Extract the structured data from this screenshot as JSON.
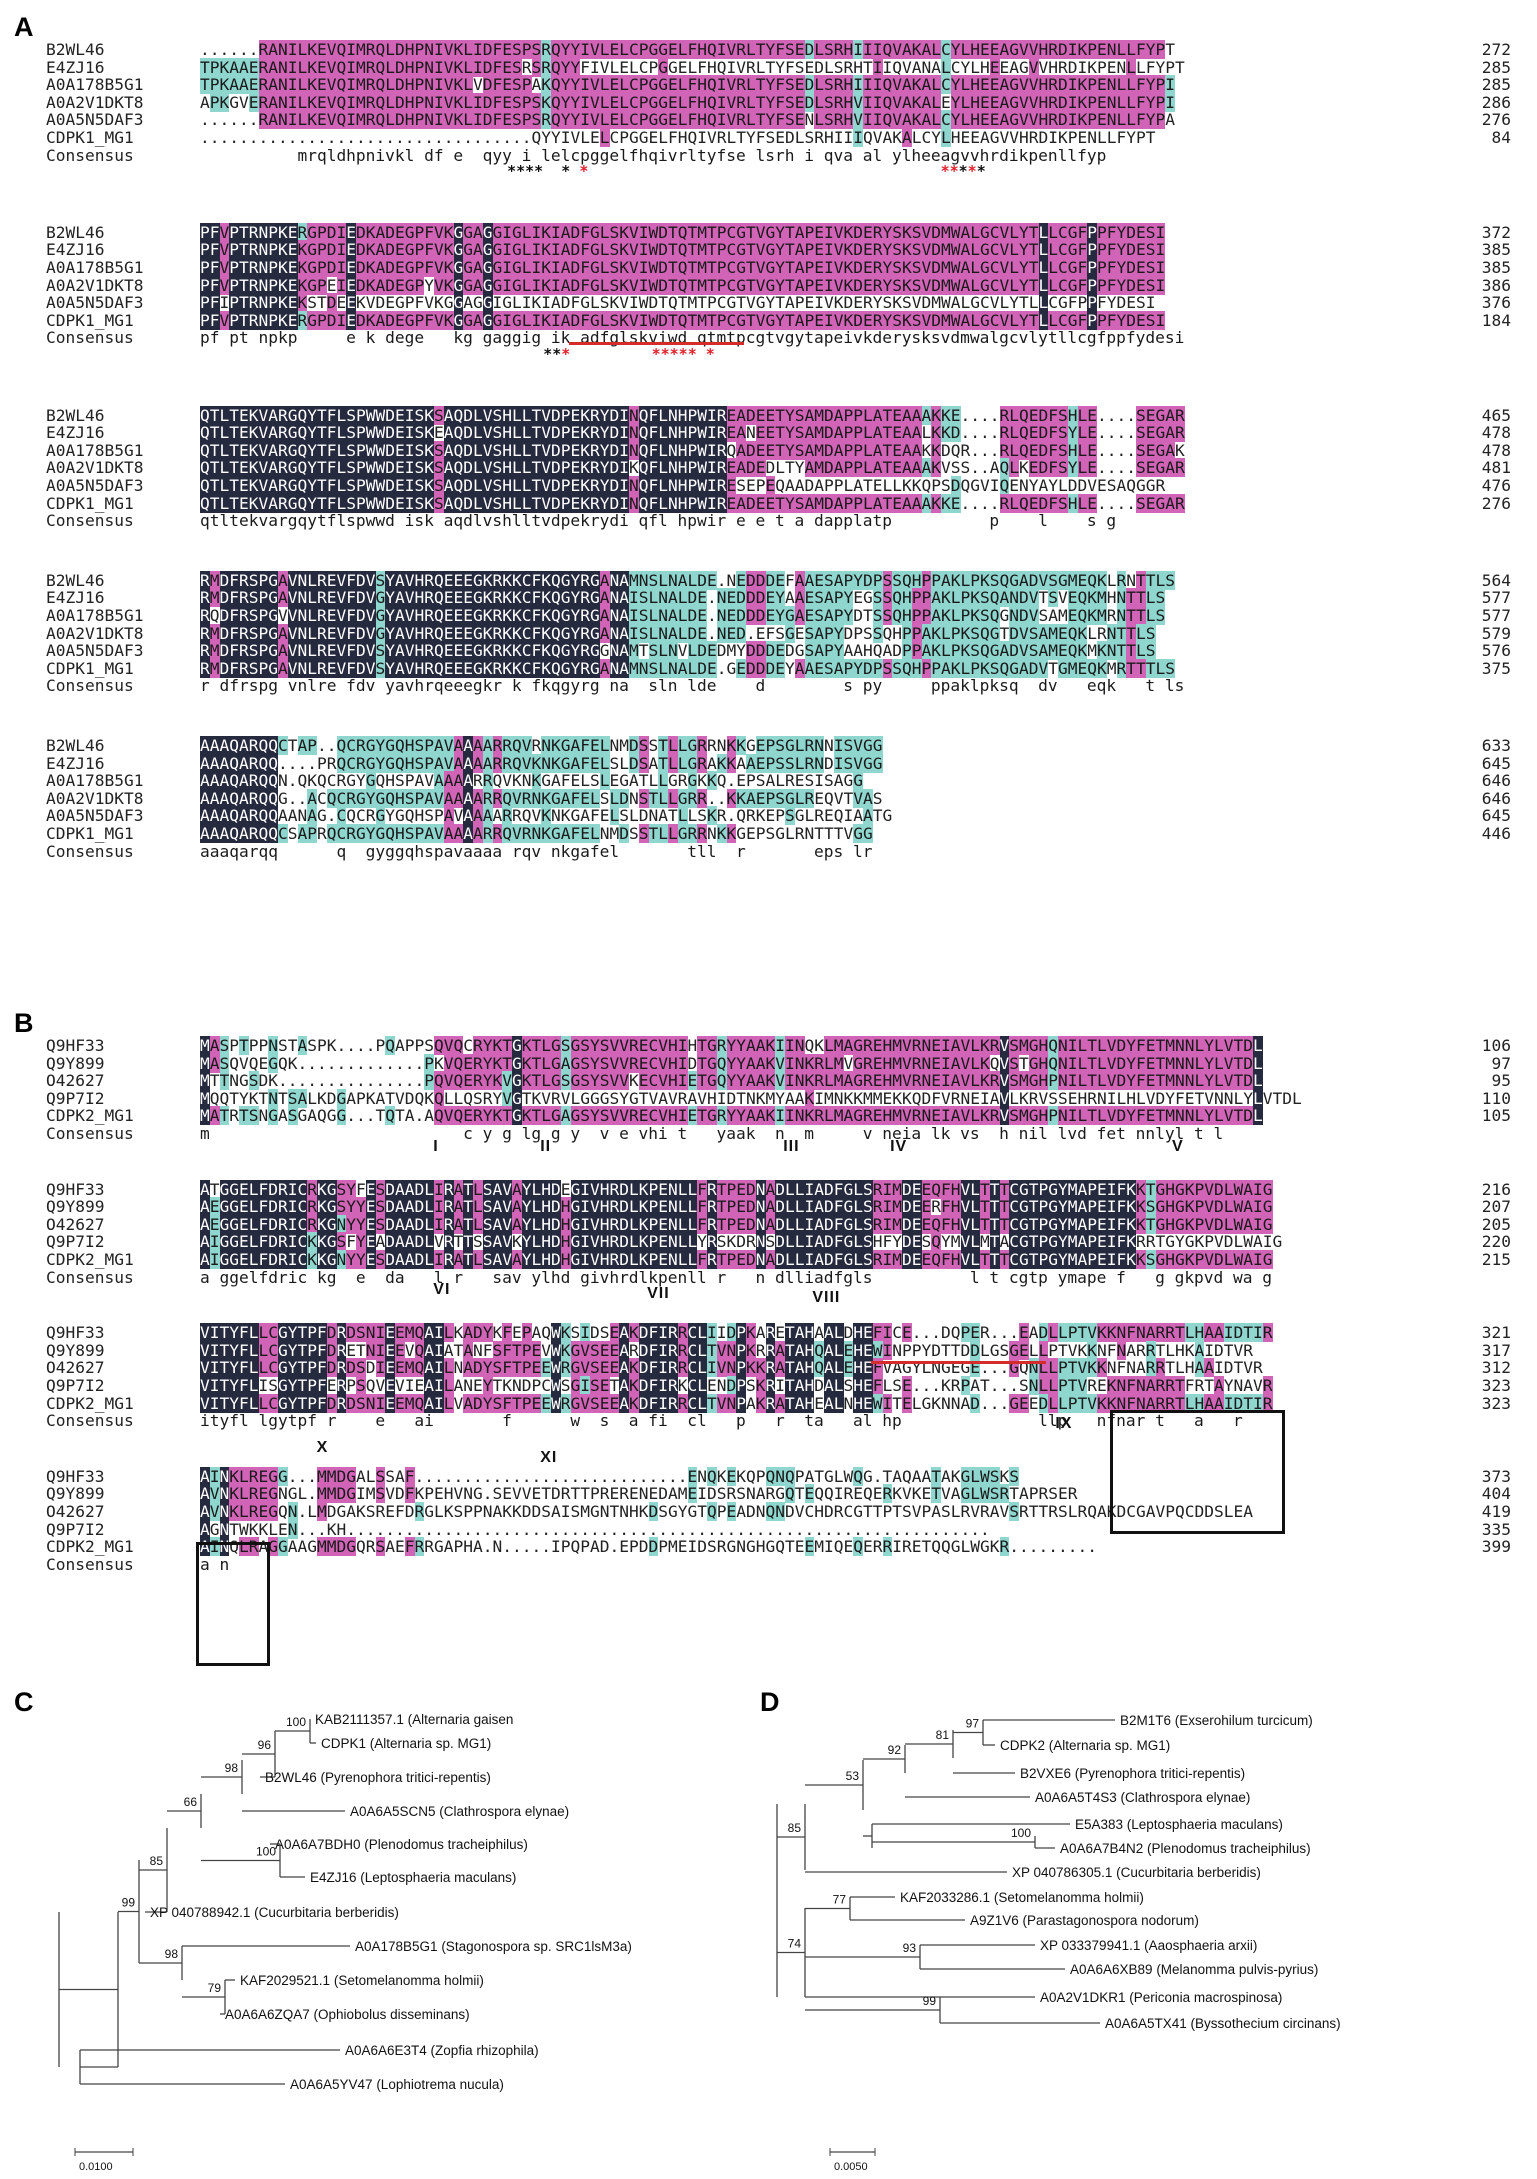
{
  "panels": {
    "a": "A",
    "b": "B",
    "c": "C",
    "d": "D"
  },
  "align_a": {
    "blocks": [
      {
        "rows": [
          {
            "name": "B2WL46",
            "seq": "......RANILKEVQIMRQLDHPNIVKLIDFESPSRQYYIVLELCPGGELFHQIVRLTYFSEDLSRHIIIQVAKALCYLHEEAGVVHRDIKPENLLFYPT",
            "num": "272"
          },
          {
            "name": "E4ZJ16",
            "seq": "TPKAAERANILKEVQIMRQLDHPNIVKLIDFESRSRQYYFIVLELCPGGELFHQIVRLTYFSEDLSRHTIIQVANALCYLHEEAGVVHRDIKPENLLFYPT",
            "num": "285"
          },
          {
            "name": "A0A178B5G1",
            "seq": "TPKAAERANILKEVQIMRQLDHPNIVKLVDFESPAKQYYIVLELCPGGELFHQIVRLTYFSEDLSRHIIIQVAKALCYLHEEAGVVHRDIKPENLLFYPI",
            "num": "285"
          },
          {
            "name": "A0A2V1DKT8",
            "seq": "APKGVERANILKEVQIMRQLDHPNIVKLIDFESPSKQYYIVLELCPGGELFHQIVRLTYFSEDLSRHVIIQVAKALEYLHEEAGVVHRDIKPENLLFYPI",
            "num": "286"
          },
          {
            "name": "A0A5N5DAF3",
            "seq": "......RANILKEVQIMRQLDHPNIVKLIDFESPSRQYYIVLELCPGGELFHQIVRLTYFSENLSRHVIIQVAKALCYLHEEAGVVHRDIKPENLLFYPA",
            "num": "276"
          },
          {
            "name": "CDPK1_MG1",
            "seq": "..................................QYYIVLELCPGGELFHQIVRLTYFSEDLSRHIIIQVAKALCYLHEEAGVVHRDIKPENLLFYPT",
            "num": "84"
          }
        ],
        "consensus": "          mrqldhpnivkl df e  qyy i lelcpggelfhqivrltyfse lsrh i qva al ylheeagvvhrdikpenllfyp ",
        "stars_black": "                                  ****  *                                          **** ",
        "stars_red": "                                          *                                       ** *          "
      },
      {
        "rows": [
          {
            "name": "B2WL46",
            "seq": "PFVPTRNPKERGPDIEDKADEGPFVKGGAGGIGLIKIADFGLSKVIWDTQTMTPCGTVGYTAPEIVKDERYSKSVDMWALGCVLYTLLCGFPPFYDESI",
            "num": "372"
          },
          {
            "name": "E4ZJ16",
            "seq": "PFVPTRNPKEKGPDIEDKADEGPFVKGGAGGIGLIKIADFGLSKVIWDTQTMTPCGTVGYTAPEIVKDERYSKSVDMWALGCVLYTLLCGFPPFYDESI",
            "num": "385"
          },
          {
            "name": "A0A178B5G1",
            "seq": "PFVPTRNPKEKGPDIEDKADEGPFVKGGAGGIGLIKIADFGLSKVIWDTQTMTPCGTVGYTAPEIVKDERYSKSVDMWALGCVLYTLLCGFPPFYDESI",
            "num": "385"
          },
          {
            "name": "A0A2V1DKT8",
            "seq": "PFVPTRNPKEKGPEIEDKADEGPYVKGGAGGIGLIKIADFGLSKVIWDTQTMTPCGTVGYTAPEIVKDERYSKSVDMWALGCVLYTLLCGFPPFYDESI",
            "num": "386"
          },
          {
            "name": "A0A5N5DAF3",
            "seq": "PFIPTRNPKEKSTDEEKVDEGPFVKGGAGGIGLIKIADFGLSKVIWDTQTMTPCGTVGYTAPEIVKDERYSKSVDMWALGCVLYTLLCGFPPFYDESI",
            "num": "376"
          },
          {
            "name": "CDPK1_MG1",
            "seq": "PFVPTRNPKERGPDIEDKADEGPFVKGGAGGIGLIKIADFGLSKVIWDTQTMTPCGTVGYTAPEIVKDERYSKSVDMWALGCVLYTLLCGFPPFYDESI",
            "num": "184"
          }
        ],
        "consensus": "pf pt npkp     e k dege   kg gaggig ik adfglskviwd qtmtpcgtvgytapeivkderysksvdmwalgcvlytllcgfppfydesi",
        "stars_black": "                                      **            ",
        "stars_red": "                                        *         ***** *"
      },
      {
        "rows": [
          {
            "name": "B2WL46",
            "seq": "QTLTEKVARGQYTFLSPWWDEISKSAQDLVSHLLTVDPEKRYDINQFLNHPWIREADEETYSAMDAPPLATEAAAKKE....RLQEDFSHLE....SEGAR",
            "num": "465"
          },
          {
            "name": "E4ZJ16",
            "seq": "QTLTEKVARGQYTFLSPWWDEISKEAQDLVSHLLTVDPEKRYDINQFLNHPWIREANEETYSAMDAPPLATEAALKKD....RLQEDFSYLE....SEGAR",
            "num": "478"
          },
          {
            "name": "A0A178B5G1",
            "seq": "QTLTEKVARGQYTFLSPWWDEISKSAQDLVSHLLTVDPEKRYDINQFLNHPWIRQADEETYSAMDAPPLATEAAKKDQR...RLQEDFSHLE....SEGAK",
            "num": "478"
          },
          {
            "name": "A0A2V1DKT8",
            "seq": "QTLTEKVARGQYTFLSPWWDEISKSAQDLVSHLLTVDPEKRYDIKQFLNHPWIREADEDLTYAMDAPPLATEAAAKVSS..AQLKEDFSYLE....SEGAR",
            "num": "481"
          },
          {
            "name": "A0A5N5DAF3",
            "seq": "QTLTEKVARGQYTFLSPWWDEISKSAQDLVSHLLTVDPEKRYDINQFLNHPWIRESEPEQAADAPPLATELLKKQPSDQGVIQENYAYLDDVESAQGGR",
            "num": "476"
          },
          {
            "name": "CDPK1_MG1",
            "seq": "QTLTEKVARGQYTFLSPWWDEISKSAQDLVSHLLTVDPEKRYDINQFLNHPWIREADEETYSAMDAPPLATEAAAKKE....RLQEDFSHLE....SEGAR",
            "num": "276"
          }
        ],
        "consensus": "qtltekvargqytflspwwd isk aqdlvshlltvdpekrydi qfl hpwir e e t a dapplatp          p    l    s g   "
      },
      {
        "rows": [
          {
            "name": "B2WL46",
            "seq": "RMDFRSPGAVNLREVFDVSYAVHRQEEEGKRKKCFKQGYRGANAMNSLNALDE.NEDDDEFAAESAPYDPSSQHPPAKLPKSQGADVSGMEQKLRNTTLS",
            "num": "564"
          },
          {
            "name": "E4ZJ16",
            "seq": "RMDFRSPGAVNLREVFDVGYAVHRQEEEGKRKKCFKQGYRGANAISLNALDE.NEDDDEYAAESAPYEGSSQHPPAKLPKSQANDVTSVEQKMHNTTLS",
            "num": "577"
          },
          {
            "name": "A0A178B5G1",
            "seq": "RQDFRSPGVVNLREVFDVGYAVHRQEEEGKRKKCFKQGYRGANAISLNALDE.NEDDDEYGAESAPYDTSSQHPPAKLPKSQGNDVSAMEQKMRNTTLS",
            "num": "577"
          },
          {
            "name": "A0A2V1DKT8",
            "seq": "RMDFRSPGAVNLREVFDVGYAVHRQEEEGKRKKCFKQGYRGANAISLNALDE.NED.EFSGESAPYDPSSQHPPAKLPKSQGTDVSAMEQKLRNTTLS",
            "num": "579"
          },
          {
            "name": "A0A5N5DAF3",
            "seq": "RMDFRSPGAVNLREVFDVSYAVHRQEEEGKRKKCFKQGYRGGNAMTSLNVLDEDMYDDDEDGSAPYAAHQADPPAKLPKSQGADVSAMEQKMKNTTLS",
            "num": "576"
          },
          {
            "name": "CDPK1_MG1",
            "seq": "RMDFRSPGAVNLREVFDVSYAVHRQEEEGKRKKCFKQGYRGANAMNSLNALDE.GEDDDEYAAESAPYDPSSQHPPAKLPKSQGADVTGMEQKMRTTTLS",
            "num": "375"
          }
        ],
        "consensus": "r dfrspg vnlre fdv yavhrqeeegkr k fkqgyrg na  sln lde    d        s py     ppaklpksq  dv   eqk   t ls"
      },
      {
        "rows": [
          {
            "name": "B2WL46",
            "seq": "AAAQARQQCTAP..QCRGYGQHSPAVAAAARRQVRNKGAFELNMDSSTLLGRRNKKGEPSGLRNNISVGG",
            "num": "633"
          },
          {
            "name": "E4ZJ16",
            "seq": "AAAQARQQ....PRQCRGYGQHSPAVAAAARRQVKNKGAFELSLDSATLLGRAKKAAEPSSLRNDISVGG",
            "num": "645"
          },
          {
            "name": "A0A178B5G1",
            "seq": "AAAQARQQN.QKQCRGYGQHSPAVAAAARRQVKNKGAFELSLEGATLLGRGKKQ.EPSALRESISAGG",
            "num": "646"
          },
          {
            "name": "A0A2V1DKT8",
            "seq": "AAAQARQQG..ACQCRGYGQHSPAVAAAARRQVRNKGAFELSLDNSTLLGRR..KKAEPSGLREQVTVAS",
            "num": "646"
          },
          {
            "name": "A0A5N5DAF3",
            "seq": "AAAQARQQAANAG.CQCRGYGQHSPAVAAAARRQVKNKGAFELSLDNATLLSKR.QRKEPSGLREQIAATG",
            "num": "645"
          },
          {
            "name": "CDPK1_MG1",
            "seq": "AAAQARQQCSAPRQCRGYGQHSPAVAAAARRQVRNKGAFELNMDSSTLLGRRNKKGEPSGLRNTTTVGG",
            "num": "446"
          }
        ],
        "consensus": "aaaqarqq      q  gyggqhspavaaaa rqv nkgafel       tll  r       eps lr         "
      }
    ]
  },
  "align_b": {
    "blocks": [
      {
        "rows": [
          {
            "name": "Q9HF33",
            "seq": "MASPTPPNSTASPK....PQAPPSQVQCRYKTGKTLGSGSYSVVRECVHIHTGRYYAAKIINQKLMAGREHMVRNEIAVLKRVSMGHQNILTLVDYFETMNNLYLVTDL",
            "num": "106"
          },
          {
            "name": "Q9Y899",
            "seq": "MASQVQEGQK.............PKVQERYKTGKTLGAGSYSVVRECVHIDTGQYYAAKVINKRLMVGREHMVRNEIAVLKQVSTGHQNILTLVDYFETMNNLYLVTDL",
            "num": "97"
          },
          {
            "name": "O42627",
            "seq": "MTTNGSDK...............PQVQERYKVGKTLGSGSYSVVKECVHIETGQYYAAKVINKRLMAGREHMVRNEIAVLKRVSMGHPNILTLVDYFETMNNLYLVTDL",
            "num": "95"
          },
          {
            "name": "Q9P7I2",
            "seq": "MQQTYKTNTSALKDGAPKATVDQKQLLQSRYVGTKVRVLGGGSYGTVAVRAVHIDTNKMYAAKIMNKKMMEKKQDFVRNEIAVLKRVSSEHRNILHLVDYFETVNNLYLVTDL",
            "num": "110"
          },
          {
            "name": "CDPK2_MG1",
            "seq": "MATRTSNGASGAQGG...TQTA.AQVQERYKTGKTLGAGSYSVVRECVHIETGRYYAAKIINKRLMAGREHMVRNEIAVLKRVSMGHPNILTLVDYFETMNNLYLVTDL",
            "num": "105"
          }
        ],
        "consensus": "m                          c y g lg g y  v e vhi t   yaak  n  m     v neia lk vs  h nil lvd fet nnlyl t l",
        "motifs": [
          "I",
          "II",
          "III",
          "IV",
          "V"
        ]
      },
      {
        "rows": [
          {
            "name": "Q9HF33",
            "seq": "ATGGELFDRICRKGSYFESDAADLIRATLSAVAYLHDEGIVHRDLKPENLLFRTPEDNADLLIADFGLSRIMDEEQFHVLTTTCGTPGYMAPEIFKKTGHGKPVDLWAIG",
            "num": "216"
          },
          {
            "name": "Q9Y899",
            "seq": "AEGGELFDRICRKGSYYESDAADLIRATLSAVAYLHDHGIVHRDLKPENLLFRTPEDNADLLIADFGLSRIMDEERFHVLTTTCGTPGYMAPEIFKKSGHGKPVDLWAIG",
            "num": "207"
          },
          {
            "name": "O42627",
            "seq": "AEGGELFDRICRKGNYYESDAADLIRATLSAVAYLHDHGIVHRDLKPENLLFRTPEDNADLLIADFGLSRIMDEEQFHVLTTTCGTPGYMAPEIFKKTGHGKPVDLWAIG",
            "num": "205"
          },
          {
            "name": "Q9P7I2",
            "seq": "AIGGELFDRICKKGSFYEADAADLVRTTSSAVKYLHDHGIVHRDLKPENLLYRSKDRNSDLLIADFGLSHFYDESQYMVLMTACGTPGYMAPEIFKRRTGYGKPVDLWAIG",
            "num": "220"
          },
          {
            "name": "CDPK2_MG1",
            "seq": "AIGGELFDRICKKGNYYESDAADLIRATLSAVAYLHDHGIVHRDLKPENLLFRTPEDNADLLIADFGLSRIMDEEQFHVLTTTCGTPGYMAPEIFKKSGHGKPVDLWAIG",
            "num": "215"
          }
        ],
        "consensus": "a ggelfdric kg  e  da   l r   sav ylhd givhrdlkpenll r   n dlliadfgls          l t cgtp ymape f   g gkpvd wa g",
        "motifs": [
          "VI",
          "VII",
          "VIII"
        ]
      },
      {
        "rows": [
          {
            "name": "Q9HF33",
            "seq": "VITYFLLCGYTPFDRDSNIEEMQAILKADYKFEPAQWKSIDSEAKDFIRRCLIIDPKARETAHAALDHEFICE...DQPER...EADLLPTVKKNFNARRTLHAAIDTIR",
            "num": "321"
          },
          {
            "name": "Q9Y899",
            "seq": "VITYFLLCGYTPFDRETNIEEVQAIATANFSFTPEVWKGVSEEARDFIRRCLTVNPKRRATAHQALEHEWINPPYDTTDDLGSGELLPTVKKNFNARRTLHKAIDTVR",
            "num": "317"
          },
          {
            "name": "O42627",
            "seq": "VITYFLLCGYTPFDRDSDIEEMQAILNADYSFTPEEWRGVSEEAKDFIRRCLIVNPKKRATAHQALEHEFVAGYLNGEGE...GQNLLPTVKKNFNARRTLHAAIDTVR",
            "num": "312"
          },
          {
            "name": "Q9P7I2",
            "seq": "VITYFLISGYTPFERPSQVEVIEAILANEYTKNDPCWSGISETAKDFIRKCLENDPSKRITAHDALSHEFLSE...KRPAT...SNLLPTVREKNFNARRTFRTAYNAVR",
            "num": "323"
          },
          {
            "name": "CDPK2_MG1",
            "seq": "VITYFLLCGYTPFDRDSNIEEMQAILVADYSFTPEEWRGVSEEAKDFIRRCLTVNPAKRATAHEALNHEWITELGKNNAD...GEEDLLPTVKKNFNARRTLHAAIDTIR",
            "num": "323"
          }
        ],
        "consensus": "ityfl lgytpf r    e   ai       f      w  s  a fi  cl   p   r  ta   al hp              llp   nfnar t   a   r",
        "motifs": [
          "X",
          "XI",
          "IX"
        ]
      },
      {
        "rows": [
          {
            "name": "Q9HF33",
            "seq": "AINKLREGG...MMDGALSSAF............................ENQKEKQPQNQPATGLWQG.TAQAATAKGLWSKS",
            "num": "373"
          },
          {
            "name": "Q9Y899",
            "seq": "AVNKLREGNGL.MMDGIMSVDFKPEHVNG.SEVVETDRTTPRERENEDAMEIDSRSNARGQTEQQIREQERKVKETVAGLWSRTAPRSER",
            "num": "404"
          },
          {
            "name": "O42627",
            "seq": "AVNKLREGQN.LMDGAKSREFDRGLKSPPNAKKDDSAISMGNTNHKDSGYGTQPEADNQNDVCHDRCGTTPTSVPASLRVRAVSRTTRSLRQAKDCGAVPQCDDSLEA",
            "num": "419"
          },
          {
            "name": "Q9P7I2",
            "seq": "AGNTWKKLEN...KH..................................................................",
            "num": "335"
          },
          {
            "name": "CDPK2_MG1",
            "seq": "AINQLRAGGAAGMMDGQRSAEFRRGAPHA.N.....IPQPAD.EPDDPMEIDSRGNGHGQTEEMIQEQERRIRETQQGLWGKR.........",
            "num": "399"
          }
        ],
        "consensus": "a n"
      }
    ]
  },
  "tree_c": {
    "scale_label": "0.0100",
    "leaves": [
      {
        "label": "KAB2111357.1 (Alternaria gaisen"
      },
      {
        "label": "CDPK1 (Alternaria sp. MG1)"
      },
      {
        "label": "B2WL46 (Pyrenophora tritici-repentis)"
      },
      {
        "label": "A0A6A5SCN5 (Clathrospora elynae)"
      },
      {
        "label": "A0A6A7BDH0 (Plenodomus tracheiphilus)"
      },
      {
        "label": "E4ZJ16 (Leptosphaeria maculans)"
      },
      {
        "label": "XP 040788942.1 (Cucurbitaria berberidis)"
      },
      {
        "label": "A0A178B5G1 (Stagonospora sp. SRC1lsM3a)"
      },
      {
        "label": "KAF2029521.1 (Setomelanomma holmii)"
      },
      {
        "label": "A0A6A6ZQA7 (Ophiobolus disseminans)"
      },
      {
        "label": "A0A6A6E3T4 (Zopfia rhizophila)"
      },
      {
        "label": "A0A6A5YV47 (Lophiotrema nucula)"
      }
    ],
    "bootstraps": [
      "100",
      "96",
      "98",
      "66",
      "100",
      "85",
      "99",
      "98",
      "79"
    ]
  },
  "tree_d": {
    "scale_label": "0.0050",
    "leaves": [
      {
        "label": "B2M1T6 (Exserohilum turcicum)"
      },
      {
        "label": "CDPK2 (Alternaria sp. MG1)"
      },
      {
        "label": "B2VXE6 (Pyrenophora tritici-repentis)"
      },
      {
        "label": "A0A6A5T4S3 (Clathrospora elynae)"
      },
      {
        "label": "E5A383 (Leptosphaeria maculans)"
      },
      {
        "label": "A0A6A7B4N2 (Plenodomus tracheiphilus)"
      },
      {
        "label": "XP 040786305.1 (Cucurbitaria berberidis)"
      },
      {
        "label": "KAF2033286.1 (Setomelanomma holmii)"
      },
      {
        "label": "A9Z1V6 (Parastagonospora nodorum)"
      },
      {
        "label": "XP 033379941.1 (Aaosphaeria arxii)"
      },
      {
        "label": "A0A6A6XB89 (Melanomma pulvis-pyrius)"
      },
      {
        "label": "A0A2V1DKR1 (Periconia macrospinosa)"
      },
      {
        "label": "A0A6A5TX41 (Byssothecium circinans)"
      }
    ],
    "bootstraps": [
      "97",
      "81",
      "92",
      "53",
      "100",
      "85",
      "77",
      "93",
      "74",
      "99"
    ]
  }
}
